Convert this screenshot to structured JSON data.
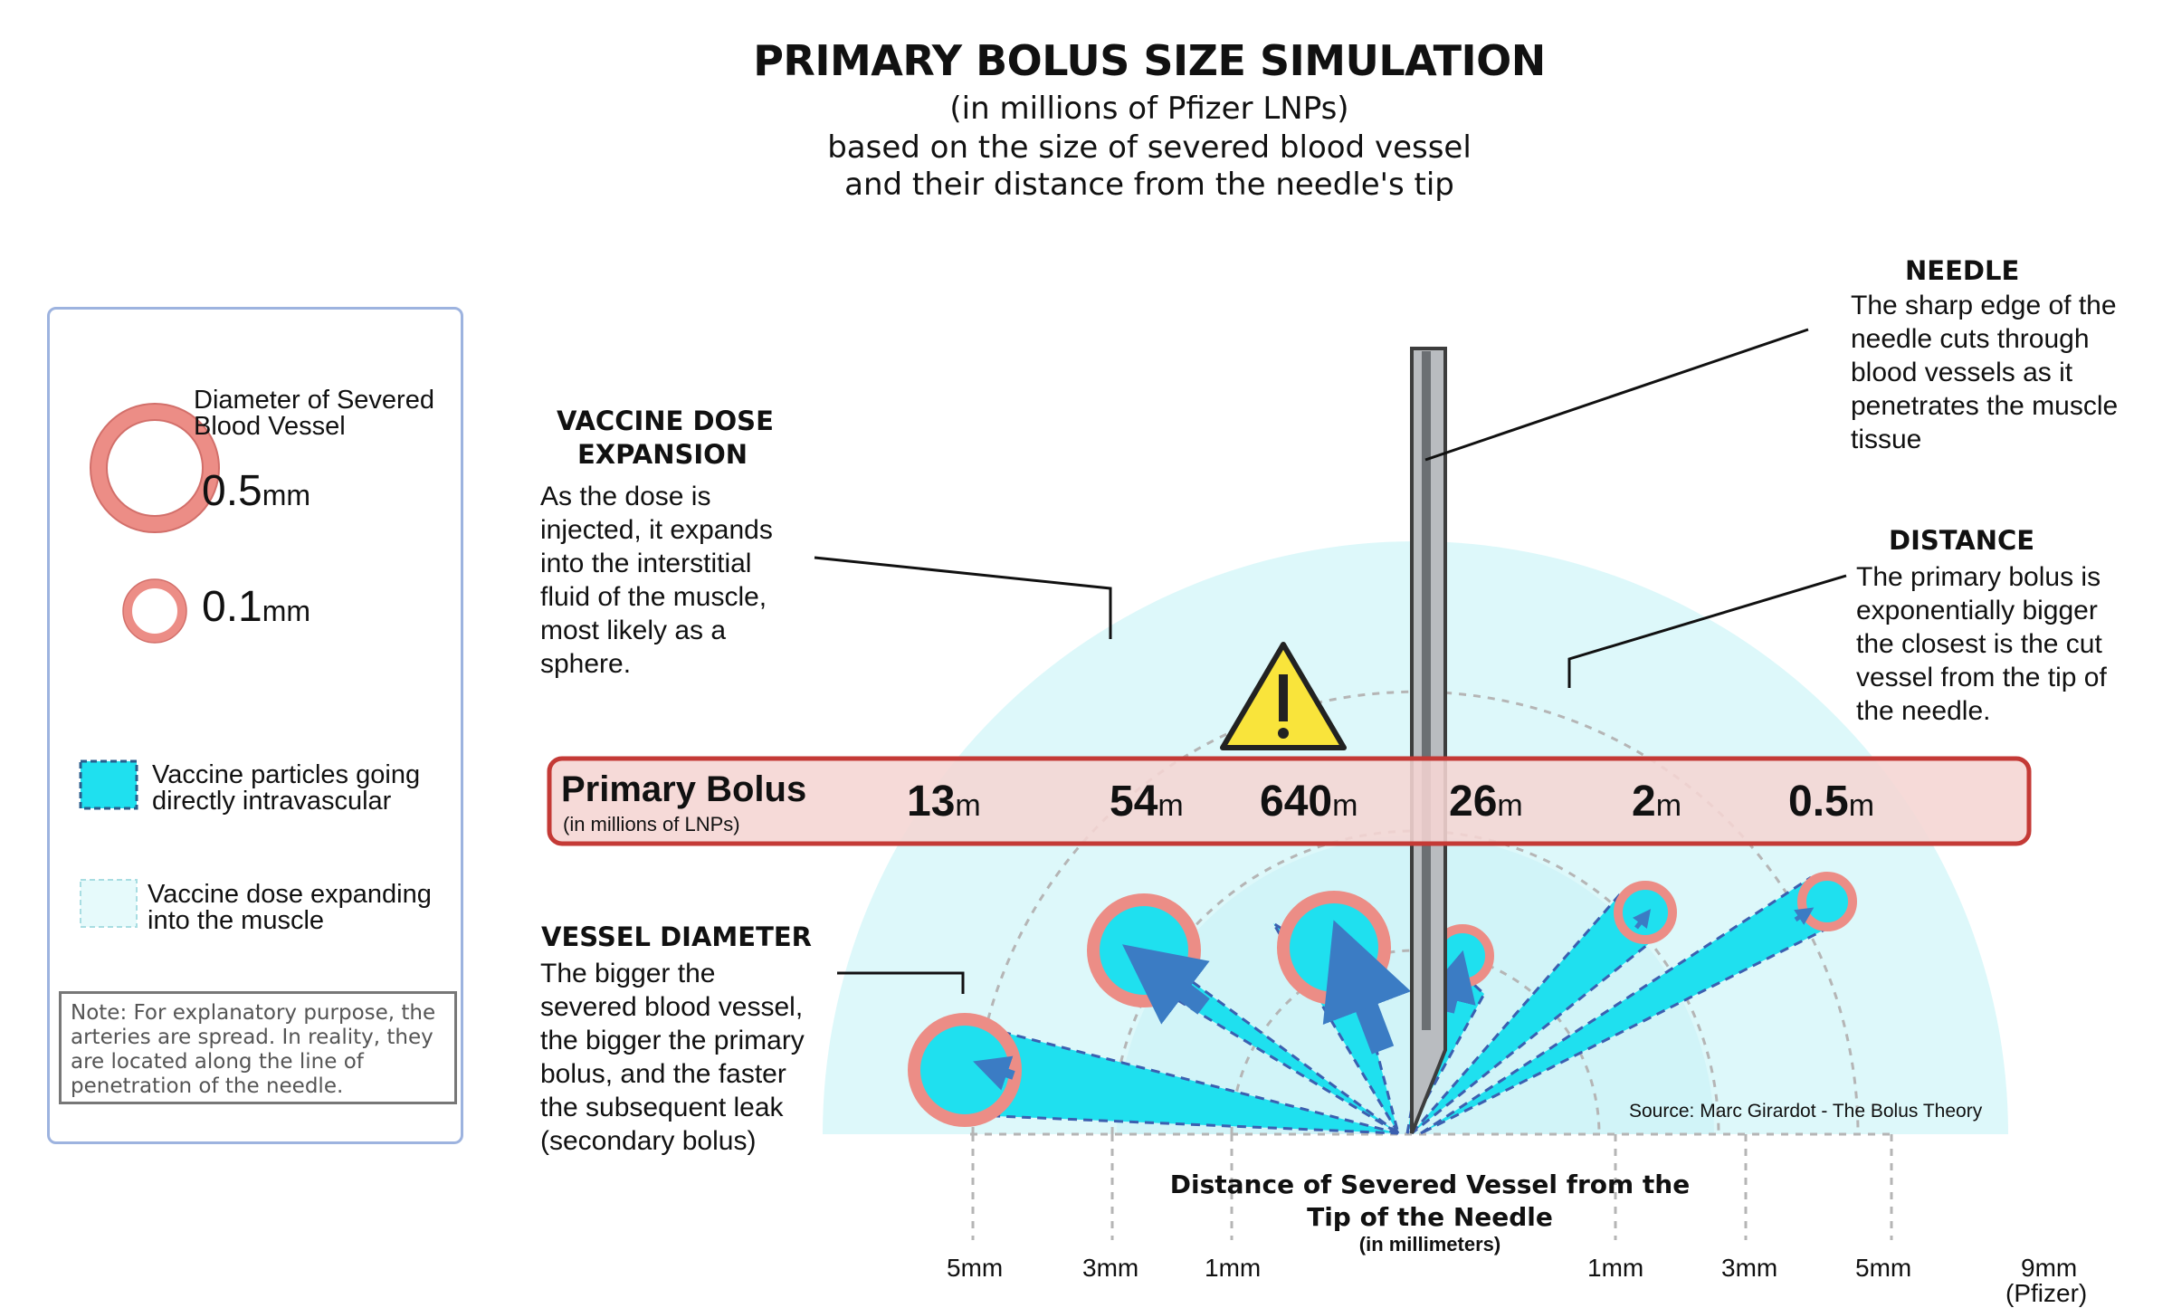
{
  "title": {
    "main": "PRIMARY BOLUS SIZE SIMULATION",
    "sub1": "(in millions of Pfizer LNPs)",
    "sub2": "based on the size of severed blood vessel",
    "sub3": "and their distance from the needle's tip"
  },
  "legend": {
    "diameter_label_1": "Diameter of Severed",
    "diameter_label_2": "Blood Vessel",
    "size_large_value": "0.5",
    "size_large_unit": "mm",
    "size_small_value": "0.1",
    "size_small_unit": "mm",
    "intravascular_1": "Vaccine particles going",
    "intravascular_2": "directly intravascular",
    "expanding_1": "Vaccine dose expanding",
    "expanding_2": "into the muscle",
    "note": "Note: For explanatory purpose, the arteries are spread. In reality,  they are located along the line of penetration of the needle."
  },
  "callouts": {
    "expansion_head_1": "VACCINE DOSE",
    "expansion_head_2": "EXPANSION",
    "expansion_body": [
      "As the dose is",
      "injected, it expands",
      "into the interstitial",
      "fluid of the muscle,",
      "most likely as a",
      "sphere."
    ],
    "needle_head": "NEEDLE",
    "needle_body": [
      "The sharp edge of the",
      "needle cuts through",
      "blood vessels as it",
      "penetrates the muscle",
      "tissue"
    ],
    "distance_head": "DISTANCE",
    "distance_body": [
      "The primary bolus is",
      "exponentially bigger",
      "the closest is the cut",
      "vessel from the tip of",
      "the needle."
    ],
    "vessel_head": "VESSEL DIAMETER",
    "vessel_body": [
      "The bigger the",
      "severed blood vessel,",
      "the bigger the primary",
      "bolus, and the faster",
      "the subsequent leak",
      "(secondary bolus)"
    ]
  },
  "bolus_bar": {
    "label": "Primary Bolus",
    "sublabel": "(in millions of LNPs)",
    "values": [
      {
        "num": "13",
        "unit": "m"
      },
      {
        "num": "54",
        "unit": "m"
      },
      {
        "num": "640",
        "unit": "m"
      },
      {
        "num": "26",
        "unit": "m"
      },
      {
        "num": "2",
        "unit": "m"
      },
      {
        "num": "0.5",
        "unit": "m"
      }
    ]
  },
  "axis": {
    "title_1": "Distance of Severed Vessel from the",
    "title_2": "Tip of the Needle",
    "title_3": "(in millimeters)",
    "ticks": [
      "5mm",
      "3mm",
      "1mm",
      "1mm",
      "3mm",
      "5mm",
      "9mm"
    ],
    "tick_extra": "(Pfizer)"
  },
  "source": "Source: Marc Girardot - The Bolus Theory",
  "colors": {
    "dome": "#dcf7f9",
    "cyan": "#1fe0ef",
    "vessel_wall": "#ec8d86",
    "arrow": "#3b7cc4",
    "bar_fill": "#f5d5d3",
    "bar_border": "#c43a36",
    "warning": "#f9e43b"
  }
}
